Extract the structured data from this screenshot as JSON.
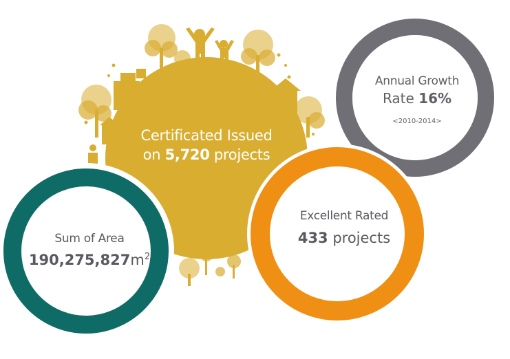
{
  "colors": {
    "gold": "#d8ad30",
    "teal": "#0f6b66",
    "orange": "#ef8f14",
    "gray": "#6f6f75",
    "text_dark": "#595a60"
  },
  "center": {
    "line1": "Certificated Issued",
    "line2_prefix": "on ",
    "line2_value": "5,720",
    "line2_suffix": " projects"
  },
  "growth": {
    "line1": "Annual Growth",
    "line2_prefix": "Rate ",
    "value": "16%",
    "range": "<2010-2014>"
  },
  "excellent": {
    "line1": "Excellent Rated",
    "value": "433",
    "unit": " projects"
  },
  "area": {
    "line1": "Sum of Area",
    "value": "190,275,827",
    "unit": "m",
    "unit_sup": "2"
  },
  "decorations": [
    "people-figures-icon",
    "tree-icon",
    "house-icon",
    "flower-icon",
    "star-icon"
  ]
}
